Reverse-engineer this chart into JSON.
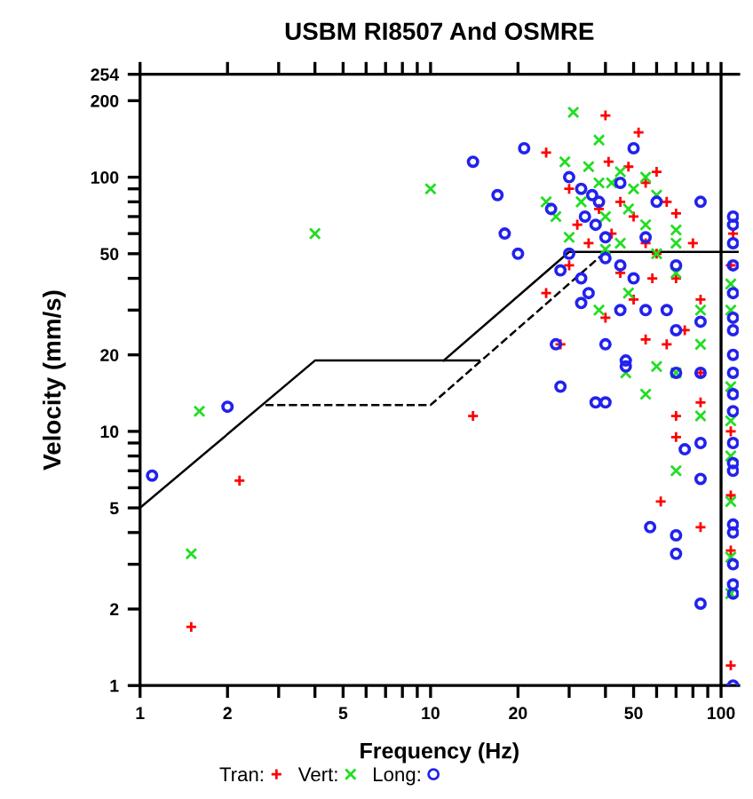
{
  "chart_data": {
    "type": "scatter",
    "title": "USBM RI8507 And OSMRE",
    "xlabel": "Frequency (Hz)",
    "ylabel": "Velocity (mm/s)",
    "log": "xy",
    "xlim": [
      1,
      115
    ],
    "ylim": [
      1,
      254
    ],
    "xticks": [
      1,
      2,
      {
        "value": 3,
        "label": null
      },
      {
        "value": 4,
        "label": null
      },
      5,
      {
        "value": 6,
        "label": null
      },
      {
        "value": 7,
        "label": null
      },
      {
        "value": 8,
        "label": null
      },
      {
        "value": 9,
        "label": null
      },
      10,
      20,
      {
        "value": 30,
        "label": null
      },
      {
        "value": 40,
        "label": null
      },
      50,
      {
        "value": 60,
        "label": null
      },
      {
        "value": 70,
        "label": null
      },
      {
        "value": 80,
        "label": null
      },
      {
        "value": 90,
        "label": null
      },
      100
    ],
    "yticks": [
      1,
      2,
      {
        "value": 3,
        "label": null
      },
      {
        "value": 4,
        "label": null
      },
      5,
      {
        "value": 6,
        "label": null
      },
      {
        "value": 7,
        "label": null
      },
      {
        "value": 8,
        "label": null
      },
      {
        "value": 9,
        "label": null
      },
      10,
      20,
      {
        "value": 30,
        "label": null
      },
      {
        "value": 40,
        "label": null
      },
      50,
      {
        "value": 60,
        "label": null
      },
      {
        "value": 70,
        "label": null
      },
      {
        "value": 80,
        "label": null
      },
      {
        "value": 90,
        "label": null
      },
      100,
      200,
      254
    ],
    "grid": false,
    "legend": "bottom",
    "ref_lines": [
      {
        "axis": "x",
        "value": 100,
        "color": "#000000",
        "line_style": "solid"
      }
    ],
    "series": [
      {
        "type": "line",
        "color": "#000000",
        "line_style": "solid",
        "marker": "none",
        "x": [
          1,
          4,
          14.7
        ],
        "values": [
          5,
          19,
          19
        ]
      },
      {
        "type": "line",
        "color": "#000000",
        "line_style": "solid",
        "marker": "none",
        "x": [
          11.1,
          30,
          115
        ],
        "values": [
          19,
          50.8,
          50.8
        ]
      },
      {
        "type": "line",
        "color": "#000000",
        "line_style": "dashed",
        "marker": "none",
        "x": [
          2.7,
          10,
          40
        ],
        "values": [
          12.7,
          12.7,
          50.8
        ]
      },
      {
        "name": "Tran:",
        "color": "#ff0000",
        "marker": "plus",
        "x": [
          1.5,
          2.2,
          14,
          40,
          52,
          25,
          41,
          48,
          60,
          55,
          30,
          45,
          65,
          38,
          50,
          70,
          32,
          42,
          55,
          80,
          60,
          30,
          45,
          70,
          25,
          50,
          85,
          40,
          75,
          55,
          28,
          65,
          85,
          85,
          70,
          70,
          62,
          85,
          108,
          108,
          108,
          108,
          108,
          110,
          35,
          58
        ],
        "values": [
          1.7,
          6.4,
          11.5,
          175,
          150,
          125,
          115,
          110,
          105,
          95,
          90,
          80,
          80,
          75,
          70,
          72,
          65,
          60,
          55,
          55,
          50,
          45,
          42,
          40,
          35,
          33,
          33,
          28,
          25,
          23,
          22,
          22,
          17,
          13,
          11.5,
          9.5,
          5.3,
          4.2,
          1.2,
          3.4,
          5.6,
          10,
          45,
          60,
          55,
          40
        ]
      },
      {
        "name": "Vert:",
        "color": "#22dd22",
        "marker": "cross",
        "x": [
          1.6,
          1.5,
          4,
          10,
          31,
          38,
          29,
          35,
          45,
          55,
          50,
          42,
          60,
          25,
          33,
          48,
          40,
          55,
          70,
          30,
          45,
          70,
          40,
          60,
          48,
          38,
          70,
          85,
          85,
          60,
          55,
          85,
          70,
          108,
          108,
          108,
          108,
          108,
          108,
          108,
          108,
          47,
          70,
          27,
          38
        ],
        "values": [
          12,
          3.3,
          60,
          90,
          180,
          140,
          115,
          110,
          105,
          100,
          90,
          95,
          85,
          80,
          80,
          75,
          70,
          65,
          62,
          58,
          55,
          55,
          52,
          50,
          35,
          30,
          42,
          30,
          22,
          18,
          14,
          11.5,
          7,
          2.3,
          3.2,
          5.3,
          8,
          11,
          15,
          30,
          38,
          17,
          17,
          70,
          95
        ]
      },
      {
        "name": "Long:",
        "color": "#2222ee",
        "marker": "circle",
        "x": [
          1.1,
          2,
          14,
          21,
          17,
          18,
          20,
          26,
          30,
          33,
          36,
          38,
          34,
          37,
          50,
          45,
          60,
          85,
          30,
          28,
          33,
          40,
          45,
          50,
          35,
          45,
          55,
          65,
          70,
          85,
          27,
          40,
          47,
          70,
          85,
          28,
          37,
          40,
          47,
          75,
          85,
          85,
          57,
          70,
          70,
          85,
          110,
          110,
          110,
          110,
          110,
          110,
          110,
          110,
          110,
          110,
          110,
          110,
          110,
          110,
          110,
          110,
          110,
          110,
          110,
          110,
          33,
          40,
          55,
          70
        ],
        "values": [
          6.7,
          12.5,
          115,
          130,
          85,
          60,
          50,
          75,
          100,
          90,
          85,
          80,
          70,
          65,
          130,
          95,
          80,
          80,
          50,
          43,
          40,
          48,
          45,
          40,
          35,
          30,
          30,
          30,
          25,
          27,
          22,
          22,
          19,
          17,
          17,
          15,
          13,
          13,
          18,
          8.5,
          9,
          6.5,
          4.2,
          3.9,
          3.3,
          2.1,
          1,
          2.3,
          2.5,
          3,
          4,
          4.3,
          7,
          7.5,
          9,
          12,
          14,
          17,
          20,
          25,
          28,
          35,
          45,
          55,
          65,
          70,
          32,
          58,
          58,
          45
        ]
      }
    ]
  }
}
